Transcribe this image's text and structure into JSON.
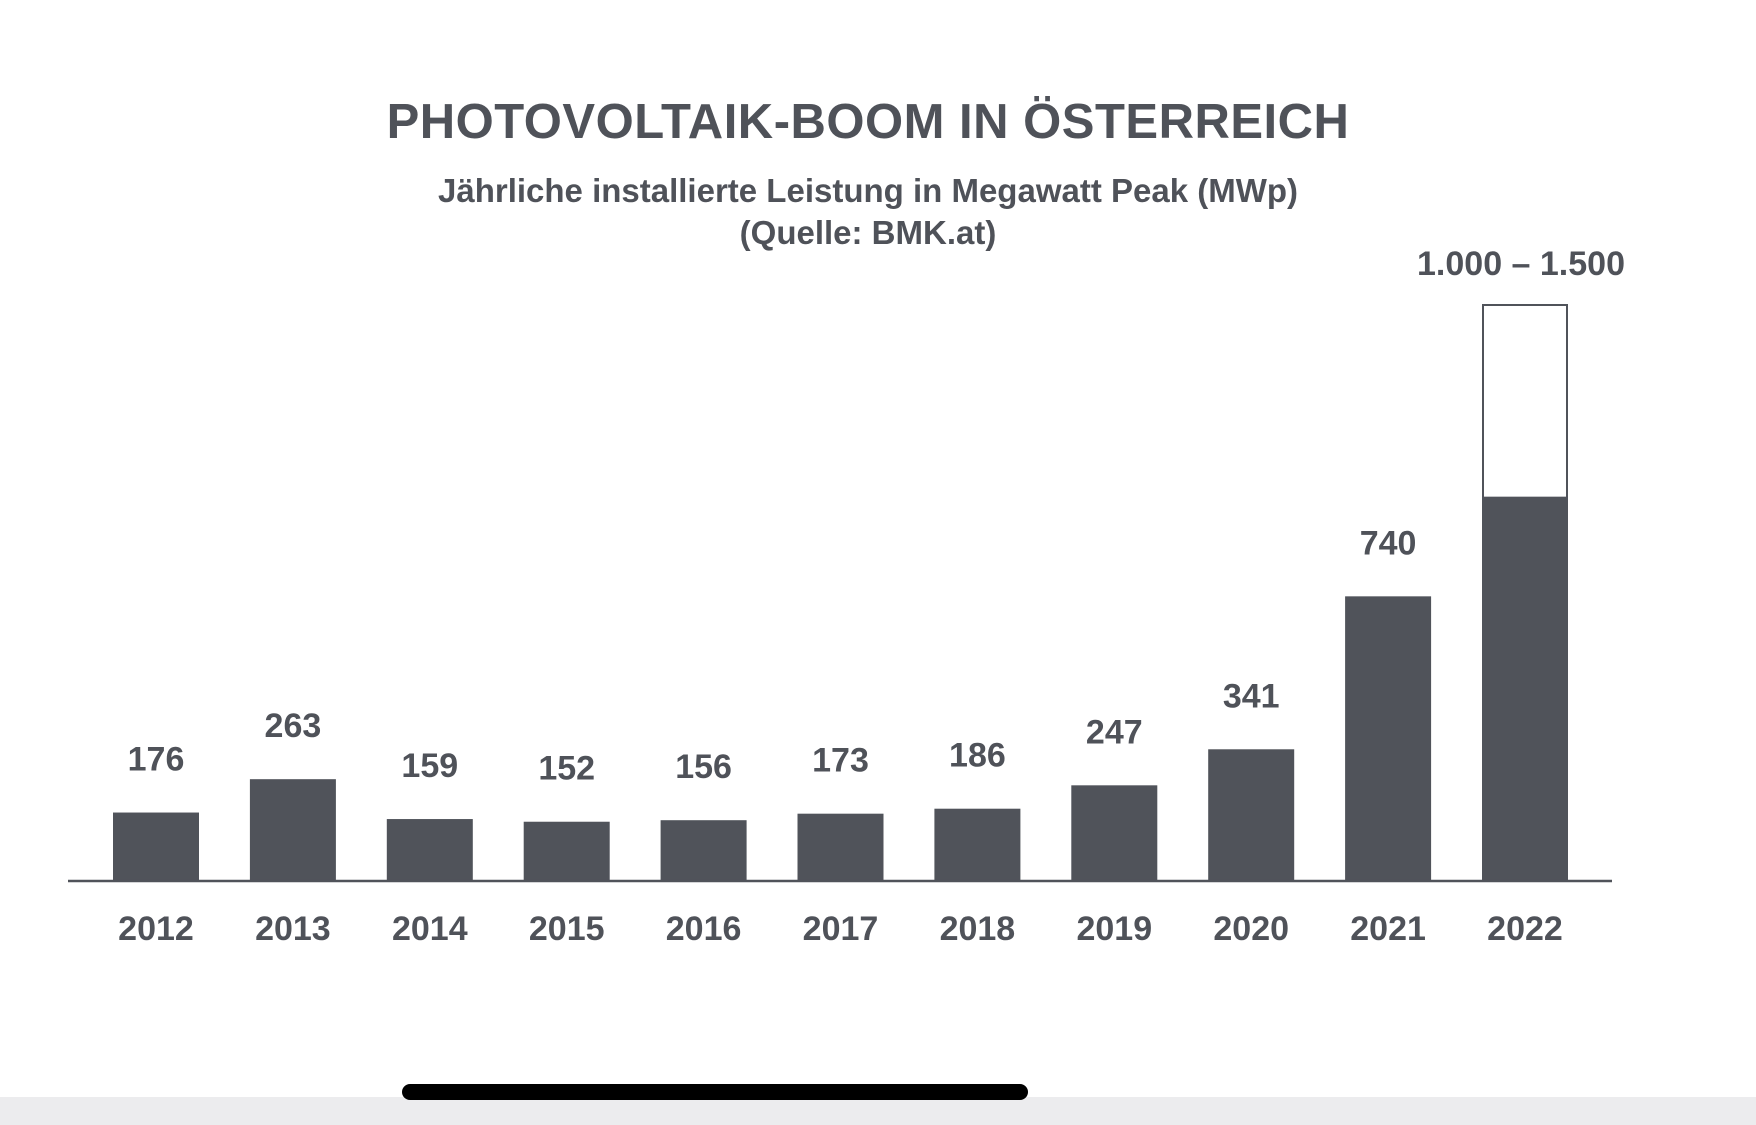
{
  "chart_data": {
    "type": "bar",
    "title": "PHOTOVOLTAIK-BOOM IN ÖSTERREICH",
    "subtitle_lines": [
      "Jährliche installierte Leistung in Megawatt Peak (MWp)",
      "(Quelle: BMK.at)"
    ],
    "categories": [
      "2012",
      "2013",
      "2014",
      "2015",
      "2016",
      "2017",
      "2018",
      "2019",
      "2020",
      "2021",
      "2022"
    ],
    "values": [
      176,
      263,
      159,
      152,
      156,
      173,
      186,
      247,
      341,
      740,
      1000
    ],
    "value_labels": [
      "176",
      "263",
      "159",
      "152",
      "156",
      "173",
      "186",
      "247",
      "341",
      "740",
      "1.000 – 1.500"
    ],
    "range_extension": {
      "category": "2022",
      "low": 1000,
      "high": 1500
    },
    "ylim": [
      0,
      1500
    ],
    "xlabel": "",
    "ylabel": "",
    "grid": false,
    "legend": "none",
    "colors": {
      "bar": "#50535a",
      "range_outline": "#50535a",
      "range_fill": "#ffffff",
      "text": "#4f5259",
      "axis": "#50535a"
    }
  }
}
